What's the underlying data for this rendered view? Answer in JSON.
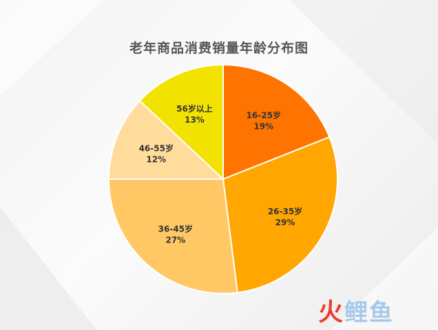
{
  "chart_data": {
    "type": "pie",
    "title": "老年商品消费销量年龄分布图",
    "categories": [
      "16-25岁",
      "26-35岁",
      "36-45岁",
      "46-55岁",
      "56岁以上"
    ],
    "values": [
      19,
      29,
      27,
      12,
      13
    ],
    "value_labels": [
      "19%",
      "29%",
      "27%",
      "12%",
      "13%"
    ],
    "colors": [
      "#ff7300",
      "#ffa600",
      "#ffc864",
      "#ffdc9c",
      "#f2e200"
    ],
    "start_angle": "12 o'clock, clockwise"
  },
  "watermark": {
    "brand_mark": "火",
    "brand_text": "鲤鱼"
  }
}
